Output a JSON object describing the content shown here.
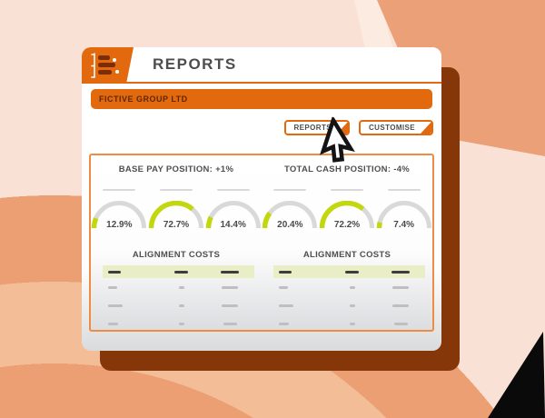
{
  "app": {
    "title": "REPORTS",
    "logo_icon": "report-list-icon"
  },
  "banner": {
    "company": "FICTIVE GROUP LTD"
  },
  "toolbar": {
    "reports_label": "REPORTS",
    "customise_label": "CUSTOMISE"
  },
  "colors": {
    "accent_orange": "#e2690e",
    "lime": "#c3d70f",
    "pale_lime": "#e9eec6",
    "track_gray": "#d9d9d9",
    "shadow_brown": "#853709",
    "bg_peach": "#f9e2d5",
    "bg_orange": "#eba077"
  },
  "chart_data": [
    {
      "type": "gauge",
      "title": "BASE PAY POSITION: +1%",
      "values": [
        12.9,
        72.7,
        14.4
      ],
      "labels": [
        "12.9%",
        "72.7%",
        "14.4%"
      ],
      "max": 100,
      "arc_span_degrees": 180,
      "track_color": "#d9d9d9",
      "value_color": "#c3d70f"
    },
    {
      "type": "gauge",
      "title": "TOTAL CASH POSITION: -4%",
      "values": [
        20.4,
        72.2,
        7.4
      ],
      "labels": [
        "20.4%",
        "72.2%",
        "7.4%"
      ],
      "max": 100,
      "arc_span_degrees": 180,
      "track_color": "#d9d9d9",
      "value_color": "#c3d70f"
    }
  ],
  "tables": [
    {
      "title": "ALIGNMENT COSTS",
      "placeholder_content": true,
      "header_dash_widths": [
        14,
        15,
        20
      ],
      "row_dash_widths": [
        [
          10,
          6,
          18
        ],
        [
          16,
          6,
          18
        ],
        [
          11,
          6,
          15
        ]
      ]
    },
    {
      "title": "ALIGNMENT COSTS",
      "placeholder_content": true,
      "header_dash_widths": [
        14,
        15,
        20
      ],
      "row_dash_widths": [
        [
          10,
          6,
          18
        ],
        [
          16,
          6,
          18
        ],
        [
          11,
          6,
          15
        ]
      ]
    }
  ]
}
